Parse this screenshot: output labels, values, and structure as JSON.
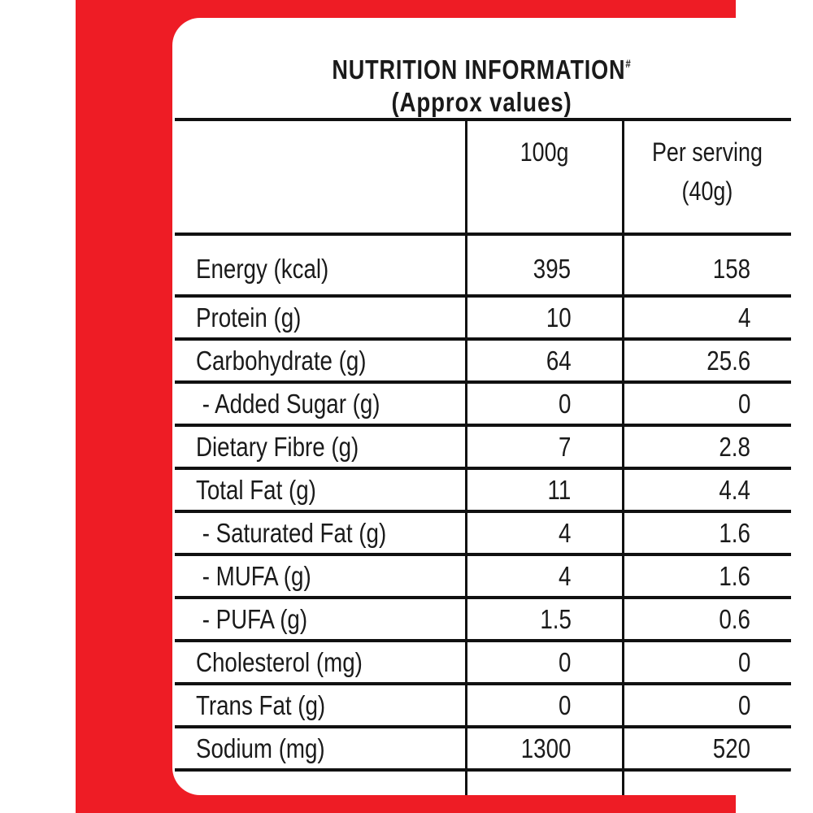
{
  "panel": {
    "background_color": "#ee1c25",
    "card_color": "#ffffff"
  },
  "title": {
    "line1": "NUTRITION INFORMATION",
    "footnote_mark": "#",
    "line2": "(Approx values)"
  },
  "table": {
    "headers": {
      "nutrient": "",
      "per_100g": "100g",
      "per_serving_line1": "Per serving",
      "per_serving_line2": "(40g)"
    },
    "rows": [
      {
        "label": "Energy (kcal)",
        "per_100g": "395",
        "per_serving": "158"
      },
      {
        "label": "Protein (g)",
        "per_100g": "10",
        "per_serving": "4"
      },
      {
        "label": "Carbohydrate (g)",
        "per_100g": "64",
        "per_serving": "25.6"
      },
      {
        "label": " - Added Sugar (g)",
        "per_100g": "0",
        "per_serving": "0"
      },
      {
        "label": "Dietary Fibre (g)",
        "per_100g": "7",
        "per_serving": "2.8"
      },
      {
        "label": "Total Fat (g)",
        "per_100g": "11",
        "per_serving": "4.4"
      },
      {
        "label": " - Saturated Fat (g)",
        "per_100g": "4",
        "per_serving": "1.6"
      },
      {
        "label": " - MUFA (g)",
        "per_100g": "4",
        "per_serving": "1.6"
      },
      {
        "label": " - PUFA (g)",
        "per_100g": "1.5",
        "per_serving": "0.6"
      },
      {
        "label": "Cholesterol (mg)",
        "per_100g": "0",
        "per_serving": "0"
      },
      {
        "label": "Trans Fat (g)",
        "per_100g": "0",
        "per_serving": "0"
      },
      {
        "label": "Sodium (mg)",
        "per_100g": "1300",
        "per_serving": "520"
      }
    ]
  }
}
